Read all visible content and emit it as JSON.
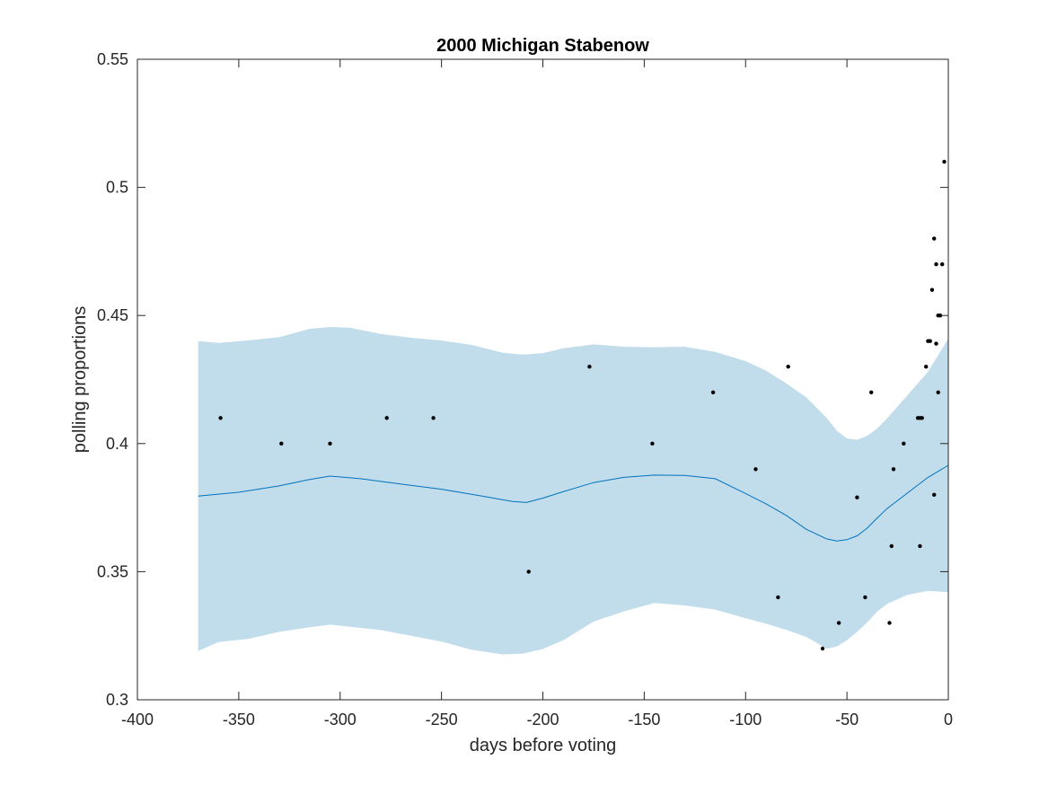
{
  "chart_data": {
    "type": "scatter",
    "title": "2000 Michigan Stabenow",
    "xlabel": "days before voting",
    "ylabel": "polling proportions",
    "xlim": [
      -400,
      0
    ],
    "ylim": [
      0.3,
      0.55
    ],
    "xticks": [
      -400,
      -350,
      -300,
      -250,
      -200,
      -150,
      -100,
      -50,
      0
    ],
    "yticks": [
      0.3,
      0.35,
      0.4,
      0.45,
      0.5,
      0.55
    ],
    "xtick_labels": [
      "-400",
      "-350",
      "-300",
      "-250",
      "-200",
      "-150",
      "-100",
      "-50",
      "0"
    ],
    "ytick_labels": [
      "0.3",
      "0.35",
      "0.4",
      "0.45",
      "0.5",
      "0.55"
    ],
    "grid": false,
    "colors": {
      "band": "#c1ddeb",
      "line": "#0072bd",
      "points": "#000000",
      "axes": "#262626"
    },
    "points": [
      {
        "x": -359,
        "y": 0.41
      },
      {
        "x": -329,
        "y": 0.4
      },
      {
        "x": -305,
        "y": 0.4
      },
      {
        "x": -277,
        "y": 0.41
      },
      {
        "x": -254,
        "y": 0.41
      },
      {
        "x": -207,
        "y": 0.35
      },
      {
        "x": -177,
        "y": 0.43
      },
      {
        "x": -146,
        "y": 0.4
      },
      {
        "x": -116,
        "y": 0.42
      },
      {
        "x": -95,
        "y": 0.39
      },
      {
        "x": -84,
        "y": 0.34
      },
      {
        "x": -79,
        "y": 0.43
      },
      {
        "x": -62,
        "y": 0.32
      },
      {
        "x": -54,
        "y": 0.33
      },
      {
        "x": -45,
        "y": 0.379
      },
      {
        "x": -41,
        "y": 0.34
      },
      {
        "x": -38,
        "y": 0.42
      },
      {
        "x": -29,
        "y": 0.33
      },
      {
        "x": -28,
        "y": 0.36
      },
      {
        "x": -27,
        "y": 0.39
      },
      {
        "x": -22,
        "y": 0.4
      },
      {
        "x": -15,
        "y": 0.41
      },
      {
        "x": -14,
        "y": 0.36
      },
      {
        "x": -14,
        "y": 0.41
      },
      {
        "x": -13,
        "y": 0.41
      },
      {
        "x": -11,
        "y": 0.43
      },
      {
        "x": -10,
        "y": 0.44
      },
      {
        "x": -9,
        "y": 0.44
      },
      {
        "x": -8,
        "y": 0.46
      },
      {
        "x": -7,
        "y": 0.48
      },
      {
        "x": -7,
        "y": 0.38
      },
      {
        "x": -6,
        "y": 0.439
      },
      {
        "x": -6,
        "y": 0.47
      },
      {
        "x": -5,
        "y": 0.45
      },
      {
        "x": -5,
        "y": 0.42
      },
      {
        "x": -4,
        "y": 0.45
      },
      {
        "x": -3,
        "y": 0.47
      },
      {
        "x": -2,
        "y": 0.51
      }
    ],
    "series": [
      {
        "type": "line",
        "x": [
          -370,
          -350,
          -330,
          -315,
          -305,
          -290,
          -270,
          -250,
          -230,
          -215,
          -208,
          -200,
          -190,
          -175,
          -160,
          -145,
          -130,
          -115,
          -100,
          -90,
          -80,
          -70,
          -60,
          -55,
          -50,
          -45,
          -40,
          -35,
          -30,
          -20,
          -10,
          0
        ],
        "y": [
          0.3795,
          0.381,
          0.3835,
          0.386,
          0.3873,
          0.3863,
          0.3842,
          0.3822,
          0.3795,
          0.3774,
          0.377,
          0.3787,
          0.3812,
          0.3848,
          0.3868,
          0.3877,
          0.3876,
          0.3863,
          0.3805,
          0.3765,
          0.372,
          0.3665,
          0.3628,
          0.362,
          0.3625,
          0.364,
          0.367,
          0.371,
          0.3748,
          0.3808,
          0.3868,
          0.3915
        ]
      },
      {
        "type": "band",
        "x": [
          -370,
          -360,
          -345,
          -330,
          -315,
          -305,
          -295,
          -280,
          -265,
          -250,
          -235,
          -220,
          -210,
          -200,
          -190,
          -175,
          -160,
          -145,
          -130,
          -115,
          -100,
          -90,
          -80,
          -70,
          -60,
          -55,
          -50,
          -45,
          -40,
          -35,
          -30,
          -20,
          -10,
          0
        ],
        "upper": [
          0.44,
          0.4393,
          0.4403,
          0.4415,
          0.4448,
          0.4455,
          0.4452,
          0.4428,
          0.4413,
          0.4402,
          0.4385,
          0.4355,
          0.4347,
          0.4353,
          0.4372,
          0.4387,
          0.4378,
          0.4376,
          0.4378,
          0.4358,
          0.4322,
          0.4285,
          0.4235,
          0.418,
          0.41,
          0.405,
          0.402,
          0.4015,
          0.403,
          0.406,
          0.41,
          0.419,
          0.428,
          0.441
        ],
        "lower": [
          0.319,
          0.3225,
          0.3238,
          0.3265,
          0.3283,
          0.3293,
          0.3285,
          0.3272,
          0.325,
          0.3227,
          0.3195,
          0.3177,
          0.318,
          0.3198,
          0.3232,
          0.3305,
          0.3345,
          0.3378,
          0.3368,
          0.3352,
          0.3318,
          0.3297,
          0.3273,
          0.3245,
          0.32,
          0.3208,
          0.3232,
          0.3265,
          0.3302,
          0.3345,
          0.3375,
          0.341,
          0.3425,
          0.342
        ]
      }
    ]
  }
}
